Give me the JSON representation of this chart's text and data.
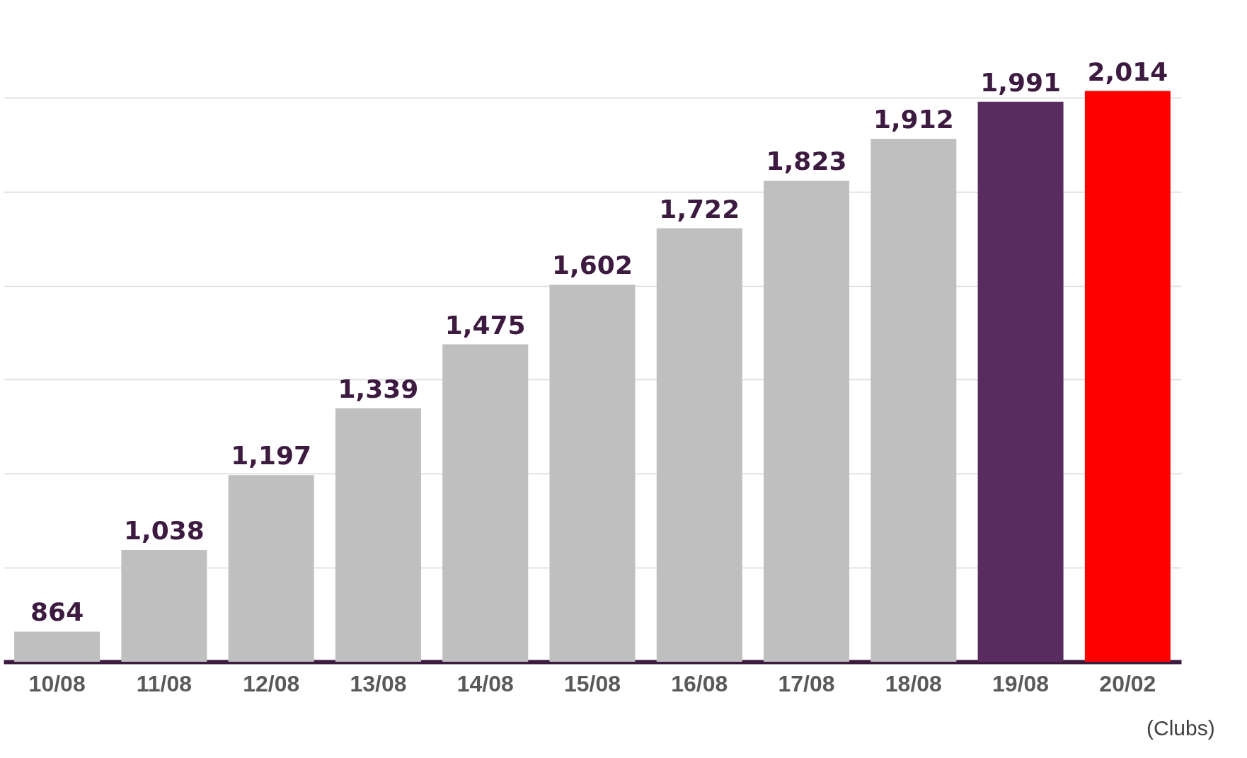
{
  "chart_data": {
    "type": "bar",
    "categories": [
      "10/08",
      "11/08",
      "12/08",
      "13/08",
      "14/08",
      "15/08",
      "16/08",
      "17/08",
      "18/08",
      "19/08",
      "20/02"
    ],
    "values": [
      864,
      1038,
      1197,
      1339,
      1475,
      1602,
      1722,
      1823,
      1912,
      1991,
      2014
    ],
    "colors": [
      "#bfbfbf",
      "#bfbfbf",
      "#bfbfbf",
      "#bfbfbf",
      "#bfbfbf",
      "#bfbfbf",
      "#bfbfbf",
      "#bfbfbf",
      "#bfbfbf",
      "#582c5e",
      "#ff0000"
    ],
    "value_labels": [
      "864",
      "1,038",
      "1,197",
      "1,339",
      "1,475",
      "1,602",
      "1,722",
      "1,823",
      "1,912",
      "1,991",
      "2,014"
    ],
    "ylim": [
      800,
      2200
    ],
    "yticks": [
      {
        "value": 1000,
        "label": null
      },
      {
        "value": 1200,
        "label": null
      },
      {
        "value": 1400,
        "label": null
      },
      {
        "value": 1600,
        "label": null
      },
      {
        "value": 1800,
        "label": null
      },
      {
        "value": 2000,
        "label": null
      }
    ],
    "grid": "y",
    "tick_labels": "x",
    "annotations": [
      "(Clubs)"
    ]
  }
}
